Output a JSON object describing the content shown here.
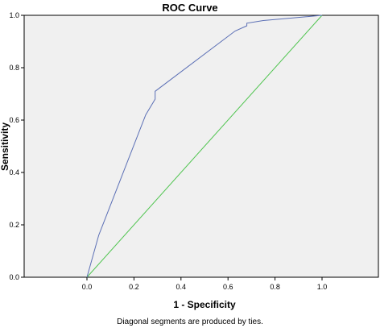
{
  "chart_data": {
    "type": "line",
    "title": "ROC Curve",
    "xlabel": "1 - Specificity",
    "ylabel": "Sensitivity",
    "footnote": "Diagonal segments are produced by ties.",
    "xlim": [
      0.0,
      1.0
    ],
    "ylim": [
      0.0,
      1.0
    ],
    "x_ticks": [
      "0.0",
      "0.2",
      "0.4",
      "0.6",
      "0.8",
      "1.0"
    ],
    "y_ticks": [
      "0.0",
      "0.2",
      "0.4",
      "0.6",
      "0.8",
      "1.0"
    ],
    "grid": false,
    "series": [
      {
        "color": "#5b6fb5",
        "x": [
          0.0,
          0.05,
          0.25,
          0.29,
          0.29,
          0.63,
          0.68,
          0.68,
          0.75,
          1.0
        ],
        "y": [
          0.0,
          0.16,
          0.62,
          0.68,
          0.71,
          0.94,
          0.96,
          0.97,
          0.98,
          1.0
        ]
      },
      {
        "color": "#4fc44f",
        "x": [
          0.0,
          1.0
        ],
        "y": [
          0.0,
          1.0
        ]
      }
    ],
    "plot_background": "#f0f0f0"
  }
}
